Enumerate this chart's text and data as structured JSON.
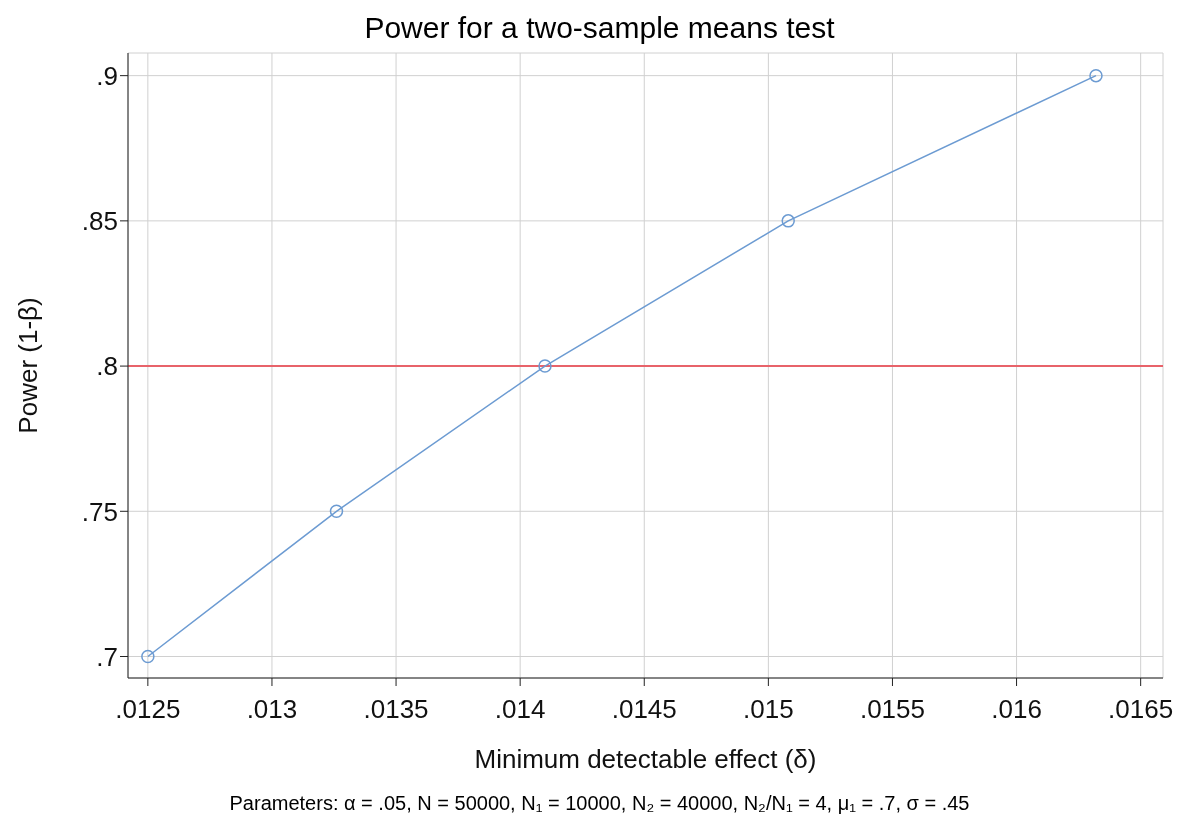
{
  "chart_data": {
    "type": "line",
    "title": "Power for a two-sample means test",
    "xlabel": "Minimum detectable effect (δ)",
    "ylabel": "Power (1-β)",
    "annotations": [
      "Parameters: α = .05, N = 50000, N₁ = 10000, N₂ = 40000, N₂/N₁ = 4, μ₁ = .7, σ = .45"
    ],
    "x": [
      0.0125,
      0.01326,
      0.0141,
      0.01508,
      0.01632
    ],
    "series": [
      {
        "color": "#6c9bd2",
        "values": [
          0.7,
          0.75,
          0.8,
          0.85,
          0.9
        ]
      }
    ],
    "xlim": [
      0.01242,
      0.01659
    ],
    "xticks": [
      {
        "value": 0.0125,
        "label": ".0125"
      },
      {
        "value": 0.013,
        "label": ".013"
      },
      {
        "value": 0.0135,
        "label": ".0135"
      },
      {
        "value": 0.014,
        "label": ".014"
      },
      {
        "value": 0.0145,
        "label": ".0145"
      },
      {
        "value": 0.015,
        "label": ".015"
      },
      {
        "value": 0.0155,
        "label": ".0155"
      },
      {
        "value": 0.016,
        "label": ".016"
      },
      {
        "value": 0.0165,
        "label": ".0165"
      }
    ],
    "ylim": [
      0.6926,
      0.9078
    ],
    "yticks": [
      {
        "value": 0.7,
        "label": ".7"
      },
      {
        "value": 0.75,
        "label": ".75"
      },
      {
        "value": 0.8,
        "label": ".8"
      },
      {
        "value": 0.85,
        "label": ".85"
      },
      {
        "value": 0.9,
        "label": ".9"
      }
    ],
    "ref_lines": [
      {
        "axis": "y",
        "value": 0.8,
        "color": "#e8636a"
      }
    ],
    "grid": true,
    "marker": "circle",
    "line_style": "solid"
  }
}
